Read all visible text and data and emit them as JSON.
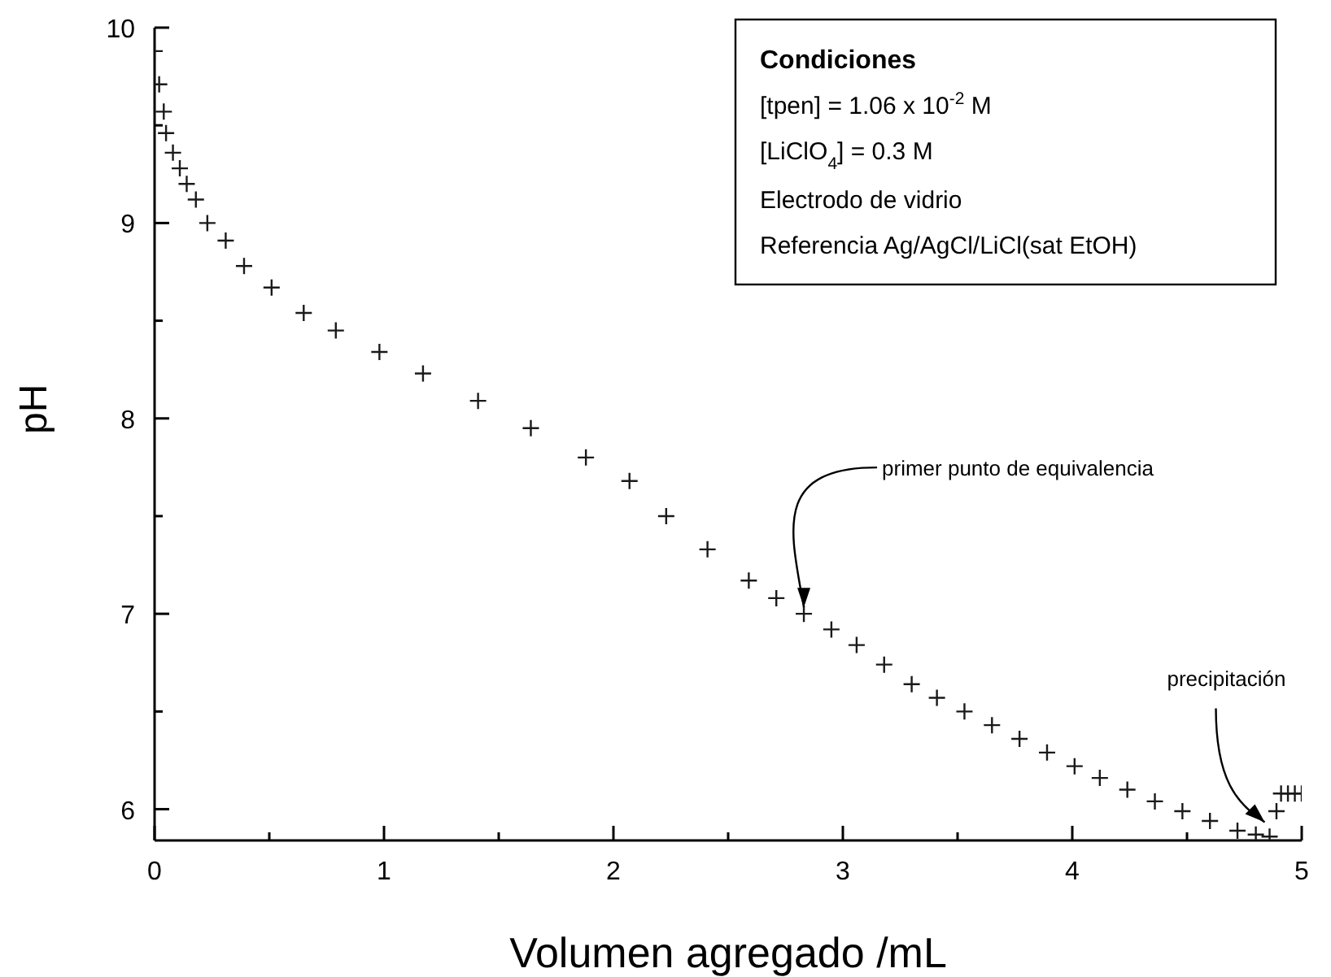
{
  "chart_data": {
    "type": "scatter",
    "xlabel": "Volumen agregado  /mL",
    "ylabel": "pH",
    "x": [
      0,
      0.02,
      0.04,
      0.05,
      0.08,
      0.11,
      0.14,
      0.18,
      0.23,
      0.31,
      0.39,
      0.51,
      0.65,
      0.79,
      0.98,
      1.17,
      1.41,
      1.64,
      1.88,
      2.07,
      2.23,
      2.41,
      2.59,
      2.71,
      2.83,
      2.95,
      3.06,
      3.18,
      3.3,
      3.41,
      3.53,
      3.65,
      3.77,
      3.89,
      4.01,
      4.12,
      4.24,
      4.36,
      4.48,
      4.6,
      4.72,
      4.8,
      4.86,
      4.89,
      4.91,
      4.94,
      4.97,
      5.0
    ],
    "values": [
      9.88,
      9.71,
      9.57,
      9.46,
      9.36,
      9.28,
      9.2,
      9.12,
      9.0,
      8.91,
      8.78,
      8.67,
      8.54,
      8.45,
      8.34,
      8.23,
      8.09,
      7.95,
      7.8,
      7.68,
      7.5,
      7.33,
      7.17,
      7.08,
      7.0,
      6.92,
      6.84,
      6.74,
      6.64,
      6.57,
      6.5,
      6.43,
      6.36,
      6.29,
      6.22,
      6.16,
      6.1,
      6.04,
      5.99,
      5.94,
      5.89,
      5.87,
      5.86,
      5.99,
      6.08,
      6.08,
      6.08,
      6.08
    ],
    "color": "#1a1a1a",
    "marker": "cross",
    "xlim": [
      0,
      5
    ],
    "ylim": [
      5.84,
      10
    ],
    "xticks": [
      0,
      {
        "value": 0.5,
        "label": null
      },
      1,
      {
        "value": 1.5,
        "label": null
      },
      2,
      {
        "value": 2.5,
        "label": null
      },
      3,
      {
        "value": 3.5,
        "label": null
      },
      4,
      {
        "value": 4.5,
        "label": null
      },
      5
    ],
    "yticks": [
      6,
      {
        "value": 6.5,
        "label": null
      },
      7,
      {
        "value": 7.5,
        "label": null
      },
      8,
      {
        "value": 8.5,
        "label": null
      },
      9,
      {
        "value": 9.5,
        "label": null
      },
      10
    ],
    "grid": false,
    "legend": false,
    "annotations": [
      "Condiciones",
      "[tpen] = 1.06 x 10$^{-2}$ M",
      "[LiClO$_{4}$] = 0.3 M",
      "Electrodo de vidrio",
      "Referencia Ag/AgCl/LiCl(sat EtOH)",
      {
        "text": "primer punto de equivalencia",
        "x": 2.83,
        "y": 7.0
      },
      {
        "text": "precipitación",
        "x": 4.86,
        "y": 5.9
      }
    ]
  }
}
